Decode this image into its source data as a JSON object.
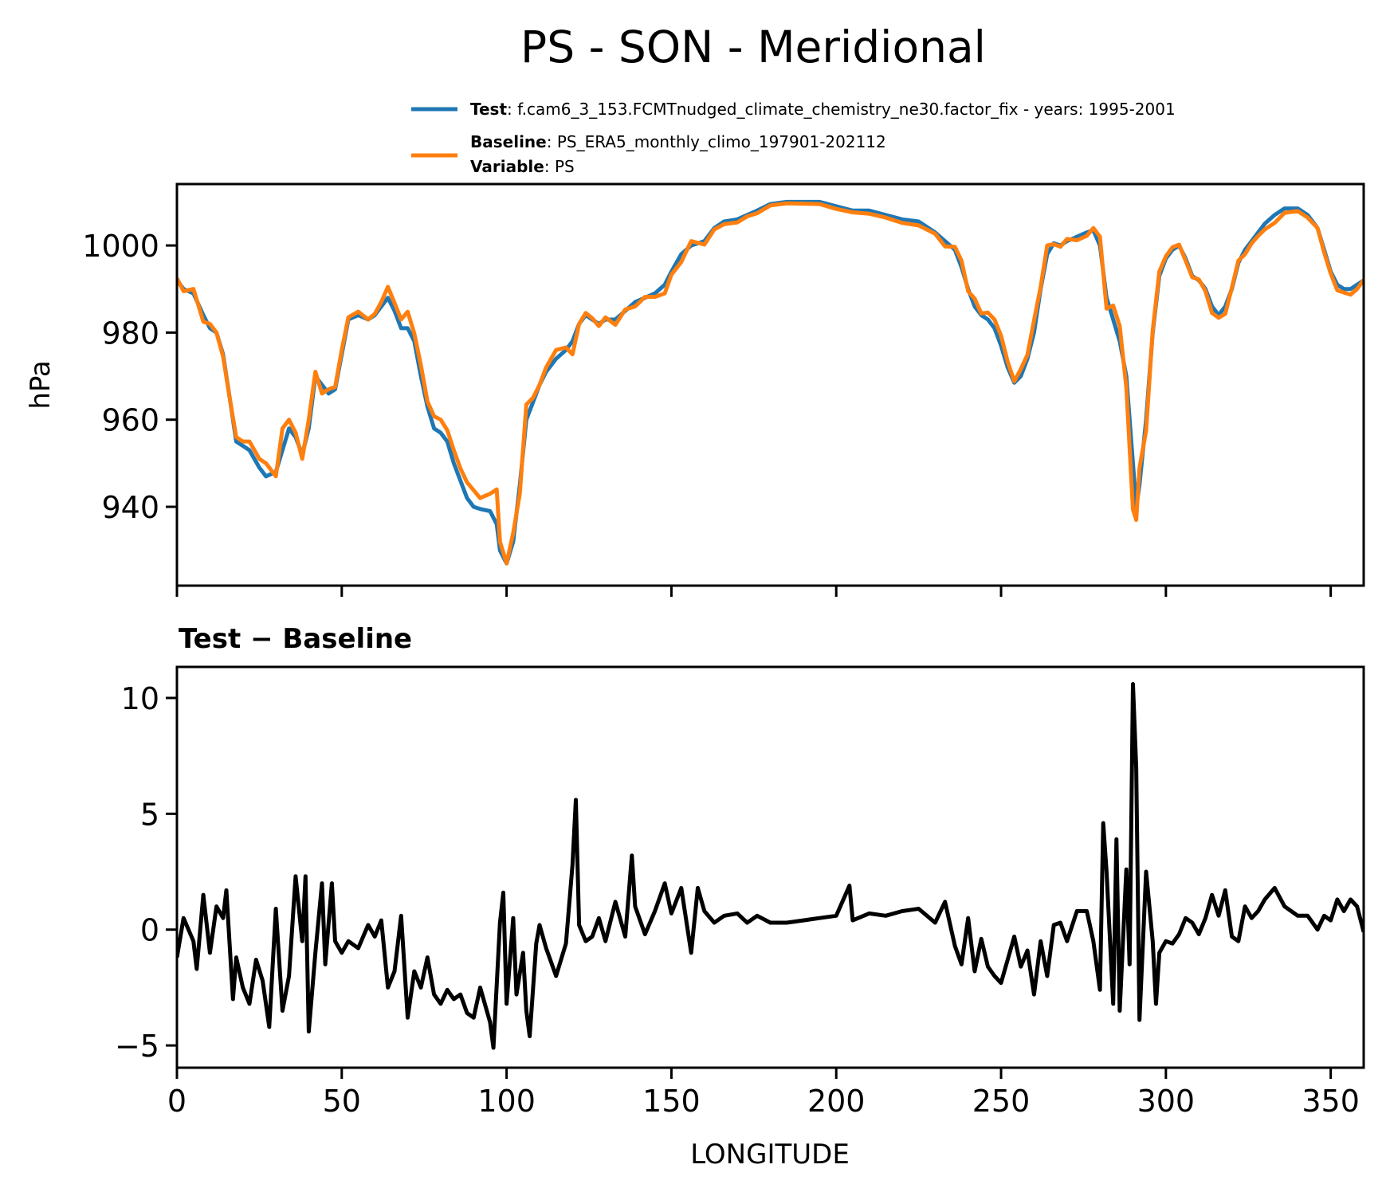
{
  "chart_data": [
    {
      "type": "line",
      "title": "PS - SON - Meridional",
      "xlabel": "",
      "ylabel": "hPa",
      "xlim": [
        0,
        360
      ],
      "ylim": [
        921.9,
        1014.1
      ],
      "xticks": [
        0,
        50,
        100,
        150,
        200,
        250,
        300,
        350
      ],
      "yticks": [
        940,
        960,
        980,
        1000
      ],
      "ytick_labels": [
        "940",
        "960",
        "980",
        "1000"
      ],
      "grid": false,
      "legend_placement": "top-right, above axes",
      "legend": [
        {
          "bold": "Test",
          "text": ": f.cam6_3_153.FCMTnudged_climate_chemistry_ne30.factor_fix - years: 1995-2001",
          "color": "#1f77b4"
        },
        {
          "bold": "Baseline",
          "text": ": PS_ERA5_monthly_climo_197901-202112",
          "bold2": "Variable",
          "text2": ": PS",
          "color": "#ff7f0e"
        }
      ],
      "x": [
        0,
        2,
        5,
        8,
        10,
        12,
        14,
        16,
        18,
        20,
        22,
        25,
        27,
        30,
        32,
        34,
        36,
        38,
        40,
        42,
        44,
        46,
        48,
        50,
        52,
        55,
        58,
        60,
        62,
        64,
        66,
        68,
        70,
        72,
        74,
        76,
        78,
        80,
        82,
        84,
        86,
        88,
        90,
        92,
        95,
        97,
        98,
        100,
        102,
        104,
        106,
        108,
        110,
        112,
        115,
        118,
        120,
        122,
        124,
        126,
        128,
        130,
        133,
        136,
        139,
        142,
        145,
        148,
        150,
        153,
        156,
        160,
        163,
        166,
        170,
        173,
        176,
        180,
        185,
        190,
        195,
        200,
        205,
        210,
        215,
        220,
        225,
        230,
        233,
        236,
        238,
        240,
        242,
        244,
        246,
        248,
        250,
        252,
        254,
        256,
        258,
        260,
        262,
        264,
        266,
        268,
        270,
        273,
        276,
        278,
        280,
        282,
        284,
        286,
        288,
        290,
        291,
        292,
        294,
        296,
        298,
        300,
        302,
        304,
        306,
        308,
        310,
        312,
        314,
        316,
        318,
        320,
        322,
        324,
        326,
        328,
        330,
        333,
        336,
        340,
        343,
        346,
        348,
        350,
        352,
        354,
        356,
        358,
        360
      ],
      "series": [
        {
          "name": "Test",
          "color": "#1f77b4",
          "values": [
            992,
            990,
            989,
            984,
            981,
            980,
            975,
            965,
            955,
            954,
            953,
            949,
            947,
            948,
            953,
            958,
            956,
            952,
            958,
            970,
            968,
            966,
            967,
            975,
            983,
            984,
            983,
            984,
            986,
            988,
            985,
            981,
            981,
            978,
            970,
            963,
            958,
            957,
            955,
            950,
            946,
            942,
            940,
            939.5,
            939,
            936,
            930,
            927,
            932,
            945,
            960,
            964,
            968,
            971,
            974,
            976,
            978,
            982,
            984,
            983,
            982,
            983,
            983,
            985,
            987,
            988,
            989,
            991,
            994,
            998,
            1000,
            1001,
            1004,
            1005.5,
            1006,
            1007,
            1008,
            1009.5,
            1010,
            1010,
            1010,
            1009,
            1008,
            1008,
            1007,
            1006,
            1005.5,
            1003,
            1001,
            999,
            995,
            990,
            986,
            984,
            983,
            981,
            977,
            972,
            968.5,
            970,
            974,
            980,
            990,
            998,
            1000.5,
            1000,
            1001,
            1002,
            1003,
            1003.5,
            1000,
            988,
            983,
            978,
            970,
            950,
            940,
            945,
            960,
            980,
            993,
            997,
            999,
            1000,
            997,
            993,
            992,
            990,
            986,
            984,
            986,
            990,
            996,
            999,
            1001,
            1003,
            1005,
            1007,
            1008.5,
            1008.5,
            1007,
            1004,
            999,
            994,
            991,
            990,
            990,
            991,
            992
          ]
        },
        {
          "name": "Baseline",
          "color": "#ff7f0e",
          "values": [
            992.5,
            989.5,
            990,
            982.5,
            982,
            980,
            974.5,
            965,
            956,
            955,
            955,
            951,
            950,
            947,
            958,
            960,
            957,
            951,
            960,
            971,
            966,
            967,
            967.5,
            976,
            983.5,
            984.8,
            983,
            984.3,
            987,
            990.5,
            986.8,
            983,
            984.8,
            979.8,
            972.5,
            964.2,
            960.8,
            960,
            957.6,
            953,
            948.8,
            945.6,
            943.8,
            942,
            943,
            944,
            932,
            927,
            934,
            943,
            963.5,
            965,
            968,
            972,
            976,
            976.6,
            975,
            982,
            984.5,
            983.3,
            981.5,
            983.5,
            981.8,
            985.3,
            986,
            988.2,
            988.2,
            989,
            993.3,
            996.2,
            1001,
            1000.2,
            1003.7,
            1004.9,
            1005.3,
            1006.7,
            1007.4,
            1009.2,
            1009.7,
            1009.6,
            1009.5,
            1008.4,
            1007.6,
            1007.3,
            1006.4,
            1005.2,
            1004.6,
            1002.7,
            999.8,
            999.7,
            996.5,
            989.5,
            987.8,
            984.4,
            984.6,
            983,
            979.3,
            973.3,
            968.8,
            971.6,
            974.9,
            982.8,
            990.5,
            1000,
            1000.3,
            999.7,
            1001.5,
            1001.2,
            1002.2,
            1004,
            1002,
            985.5,
            986.2,
            981.5,
            967.4,
            939.4,
            937,
            948.9,
            957.5,
            980.5,
            994,
            997.5,
            999.6,
            1000.2,
            996.5,
            992.7,
            992.2,
            989.5,
            984.5,
            983.4,
            984.3,
            990.3,
            996.5,
            998,
            1000.5,
            1002.2,
            1003.7,
            1005.2,
            1007.5,
            1007.9,
            1006.4,
            1004,
            998.4,
            993.6,
            989.7,
            989.2,
            988.7,
            990,
            992.1
          ]
        }
      ]
    },
    {
      "type": "line",
      "title": "Test − Baseline",
      "xlabel": "LONGITUDE",
      "ylabel": "",
      "xlim": [
        0,
        360
      ],
      "ylim": [
        -5.96,
        11.34
      ],
      "xticks": [
        0,
        50,
        100,
        150,
        200,
        250,
        300,
        350
      ],
      "xtick_labels": [
        "0",
        "50",
        "100",
        "150",
        "200",
        "250",
        "300",
        "350"
      ],
      "yticks": [
        -5,
        0,
        5,
        10
      ],
      "ytick_labels": [
        "−5",
        "0",
        "5",
        "10"
      ],
      "grid": false,
      "x": [
        0,
        2,
        5,
        6,
        8,
        10,
        12,
        14,
        15,
        17,
        18,
        20,
        22,
        24,
        26,
        28,
        30,
        32,
        34,
        36,
        38,
        39,
        40,
        42,
        44,
        45,
        47,
        48,
        50,
        52,
        55,
        58,
        60,
        62,
        64,
        66,
        68,
        70,
        72,
        74,
        76,
        78,
        80,
        82,
        84,
        86,
        88,
        90,
        92,
        95,
        96,
        98,
        99,
        100,
        102,
        103,
        105,
        106,
        107,
        109,
        110,
        112,
        115,
        118,
        120,
        121,
        122,
        124,
        126,
        128,
        130,
        133,
        136,
        138,
        139,
        142,
        145,
        148,
        150,
        153,
        156,
        158,
        160,
        163,
        166,
        170,
        173,
        176,
        180,
        185,
        190,
        195,
        200,
        204,
        205,
        210,
        215,
        220,
        225,
        230,
        233,
        236,
        238,
        240,
        242,
        244,
        246,
        248,
        250,
        252,
        254,
        256,
        258,
        260,
        262,
        264,
        266,
        268,
        270,
        273,
        276,
        278,
        280,
        281,
        282,
        284,
        285,
        286,
        288,
        289,
        290,
        291,
        292,
        294,
        296,
        297,
        298,
        300,
        302,
        304,
        306,
        308,
        310,
        312,
        314,
        316,
        318,
        320,
        322,
        324,
        326,
        328,
        330,
        333,
        336,
        340,
        343,
        346,
        348,
        350,
        352,
        354,
        356,
        358,
        360
      ],
      "series": [
        {
          "color": "#000000",
          "values": [
            -1.2,
            0.5,
            -0.5,
            -1.7,
            1.5,
            -1,
            1,
            0.5,
            1.7,
            -3,
            -1.2,
            -2.5,
            -3.2,
            -1.3,
            -2.2,
            -4.2,
            0.9,
            -3.5,
            -2,
            2.3,
            -0.5,
            2.3,
            -4.4,
            -1,
            2,
            -1.5,
            2,
            -0.5,
            -1,
            -0.5,
            -0.8,
            0.2,
            -0.3,
            0.4,
            -2.5,
            -1.8,
            0.6,
            -3.8,
            -1.8,
            -2.5,
            -1.2,
            -2.8,
            -3.2,
            -2.6,
            -3,
            -2.8,
            -3.6,
            -3.8,
            -2.5,
            -4,
            -5.1,
            0.3,
            1.6,
            -3.2,
            0.5,
            -2.8,
            -1,
            -3.5,
            -4.6,
            -0.6,
            0.2,
            -0.8,
            -2,
            -0.6,
            2.8,
            5.6,
            0.2,
            -0.5,
            -0.3,
            0.5,
            -0.5,
            1.2,
            -0.3,
            3.2,
            1,
            -0.2,
            0.8,
            2,
            0.7,
            1.8,
            -1,
            1.8,
            0.8,
            0.3,
            0.6,
            0.7,
            0.3,
            0.6,
            0.3,
            0.3,
            0.4,
            0.5,
            0.6,
            1.9,
            0.4,
            0.7,
            0.6,
            0.8,
            0.9,
            0.3,
            1.2,
            -0.7,
            -1.5,
            0.5,
            -1.8,
            -0.4,
            -1.6,
            -2,
            -2.3,
            -1.3,
            -0.3,
            -1.6,
            -0.9,
            -2.8,
            -0.5,
            -2,
            0.2,
            0.3,
            -0.5,
            0.8,
            0.8,
            -0.5,
            -2.6,
            4.6,
            2.5,
            -3.2,
            3.9,
            -3.5,
            2.6,
            -1.5,
            10.6,
            7,
            -3.9,
            2.5,
            -0.5,
            -3.2,
            -1,
            -0.5,
            -0.6,
            -0.2,
            0.5,
            0.3,
            -0.2,
            0.5,
            1.5,
            0.6,
            1.7,
            -0.3,
            -0.5,
            1,
            0.5,
            0.8,
            1.3,
            1.8,
            1,
            0.6,
            0.6,
            0,
            0.6,
            0.4,
            1.3,
            0.8,
            1.3,
            1,
            -0.1
          ]
        }
      ]
    }
  ]
}
